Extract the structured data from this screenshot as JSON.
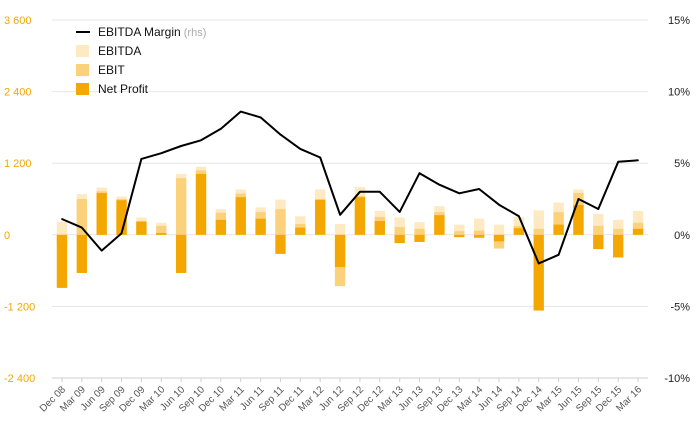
{
  "chart_data": {
    "type": "bar",
    "categories": [
      "Dec 08",
      "Mar 09",
      "Jun 09",
      "Sep 09",
      "Dec 09",
      "Mar 10",
      "Jun 10",
      "Sep 10",
      "Dec 10",
      "Mar 11",
      "Jun 11",
      "Sep 11",
      "Dec 11",
      "Mar 12",
      "Jun 12",
      "Sep 12",
      "Dec 12",
      "Mar 13",
      "Jun 13",
      "Sep 13",
      "Dec 13",
      "Mar 14",
      "Jun 14",
      "Sep 14",
      "Dec 14",
      "Mar 15",
      "Jun 15",
      "Sep 15",
      "Dec 15",
      "Mar 16"
    ],
    "left_axis": {
      "ylim": [
        -2400,
        3600
      ],
      "ticks": [
        3600,
        2400,
        1200,
        0,
        -1200,
        -2400
      ],
      "tick_labels": [
        "3 600",
        "2 400",
        "1 200",
        "0",
        "-1 200",
        "-2 400"
      ]
    },
    "right_axis": {
      "ylim": [
        -10,
        15
      ],
      "ticks": [
        15,
        10,
        5,
        0,
        -5,
        -10
      ],
      "tick_labels": [
        "15%",
        "10%",
        "5%",
        "0%",
        "-5%",
        "-10%"
      ]
    },
    "grid": true,
    "legend": {
      "placement": "top-left",
      "items": [
        {
          "label": "EBITDA Margin",
          "sublabel": "(rhs)",
          "kind": "line",
          "color": "#000000"
        },
        {
          "label": "EBITDA",
          "kind": "bar",
          "color": "#fde9c2"
        },
        {
          "label": "EBIT",
          "kind": "bar",
          "color": "#fbd17c"
        },
        {
          "label": "Net Profit",
          "kind": "bar",
          "color": "#f4a700"
        }
      ]
    },
    "series": [
      {
        "name": "EBITDA",
        "axis": "left",
        "color": "#fde9c2",
        "values": [
          220,
          680,
          790,
          640,
          290,
          200,
          1020,
          1140,
          430,
          760,
          460,
          590,
          310,
          760,
          180,
          800,
          400,
          290,
          210,
          480,
          170,
          270,
          170,
          300,
          410,
          540,
          760,
          350,
          250,
          400
        ]
      },
      {
        "name": "EBIT",
        "axis": "left",
        "color": "#fbd17c",
        "values": [
          -180,
          600,
          730,
          600,
          230,
          150,
          950,
          1080,
          370,
          690,
          380,
          430,
          180,
          580,
          -860,
          650,
          300,
          130,
          100,
          380,
          60,
          70,
          -230,
          150,
          100,
          380,
          700,
          150,
          100,
          200
        ]
      },
      {
        "name": "Net Profit",
        "axis": "left",
        "color": "#f4a700",
        "values": [
          -890,
          -640,
          700,
          580,
          220,
          30,
          -640,
          1020,
          250,
          630,
          270,
          -320,
          120,
          590,
          -540,
          630,
          230,
          -140,
          -120,
          330,
          -40,
          -50,
          -110,
          110,
          -1270,
          170,
          500,
          -240,
          -380,
          100
        ]
      },
      {
        "name": "EBITDA Margin",
        "axis": "right",
        "color": "#000000",
        "values": [
          1.1,
          0.5,
          -1.1,
          0.1,
          5.3,
          5.7,
          6.2,
          6.6,
          7.4,
          8.6,
          8.2,
          7.0,
          6.0,
          5.4,
          1.4,
          3.0,
          3.0,
          1.6,
          4.3,
          3.5,
          2.9,
          3.2,
          2.1,
          1.3,
          -2.0,
          -1.4,
          2.5,
          1.8,
          5.1,
          5.2
        ]
      }
    ]
  }
}
